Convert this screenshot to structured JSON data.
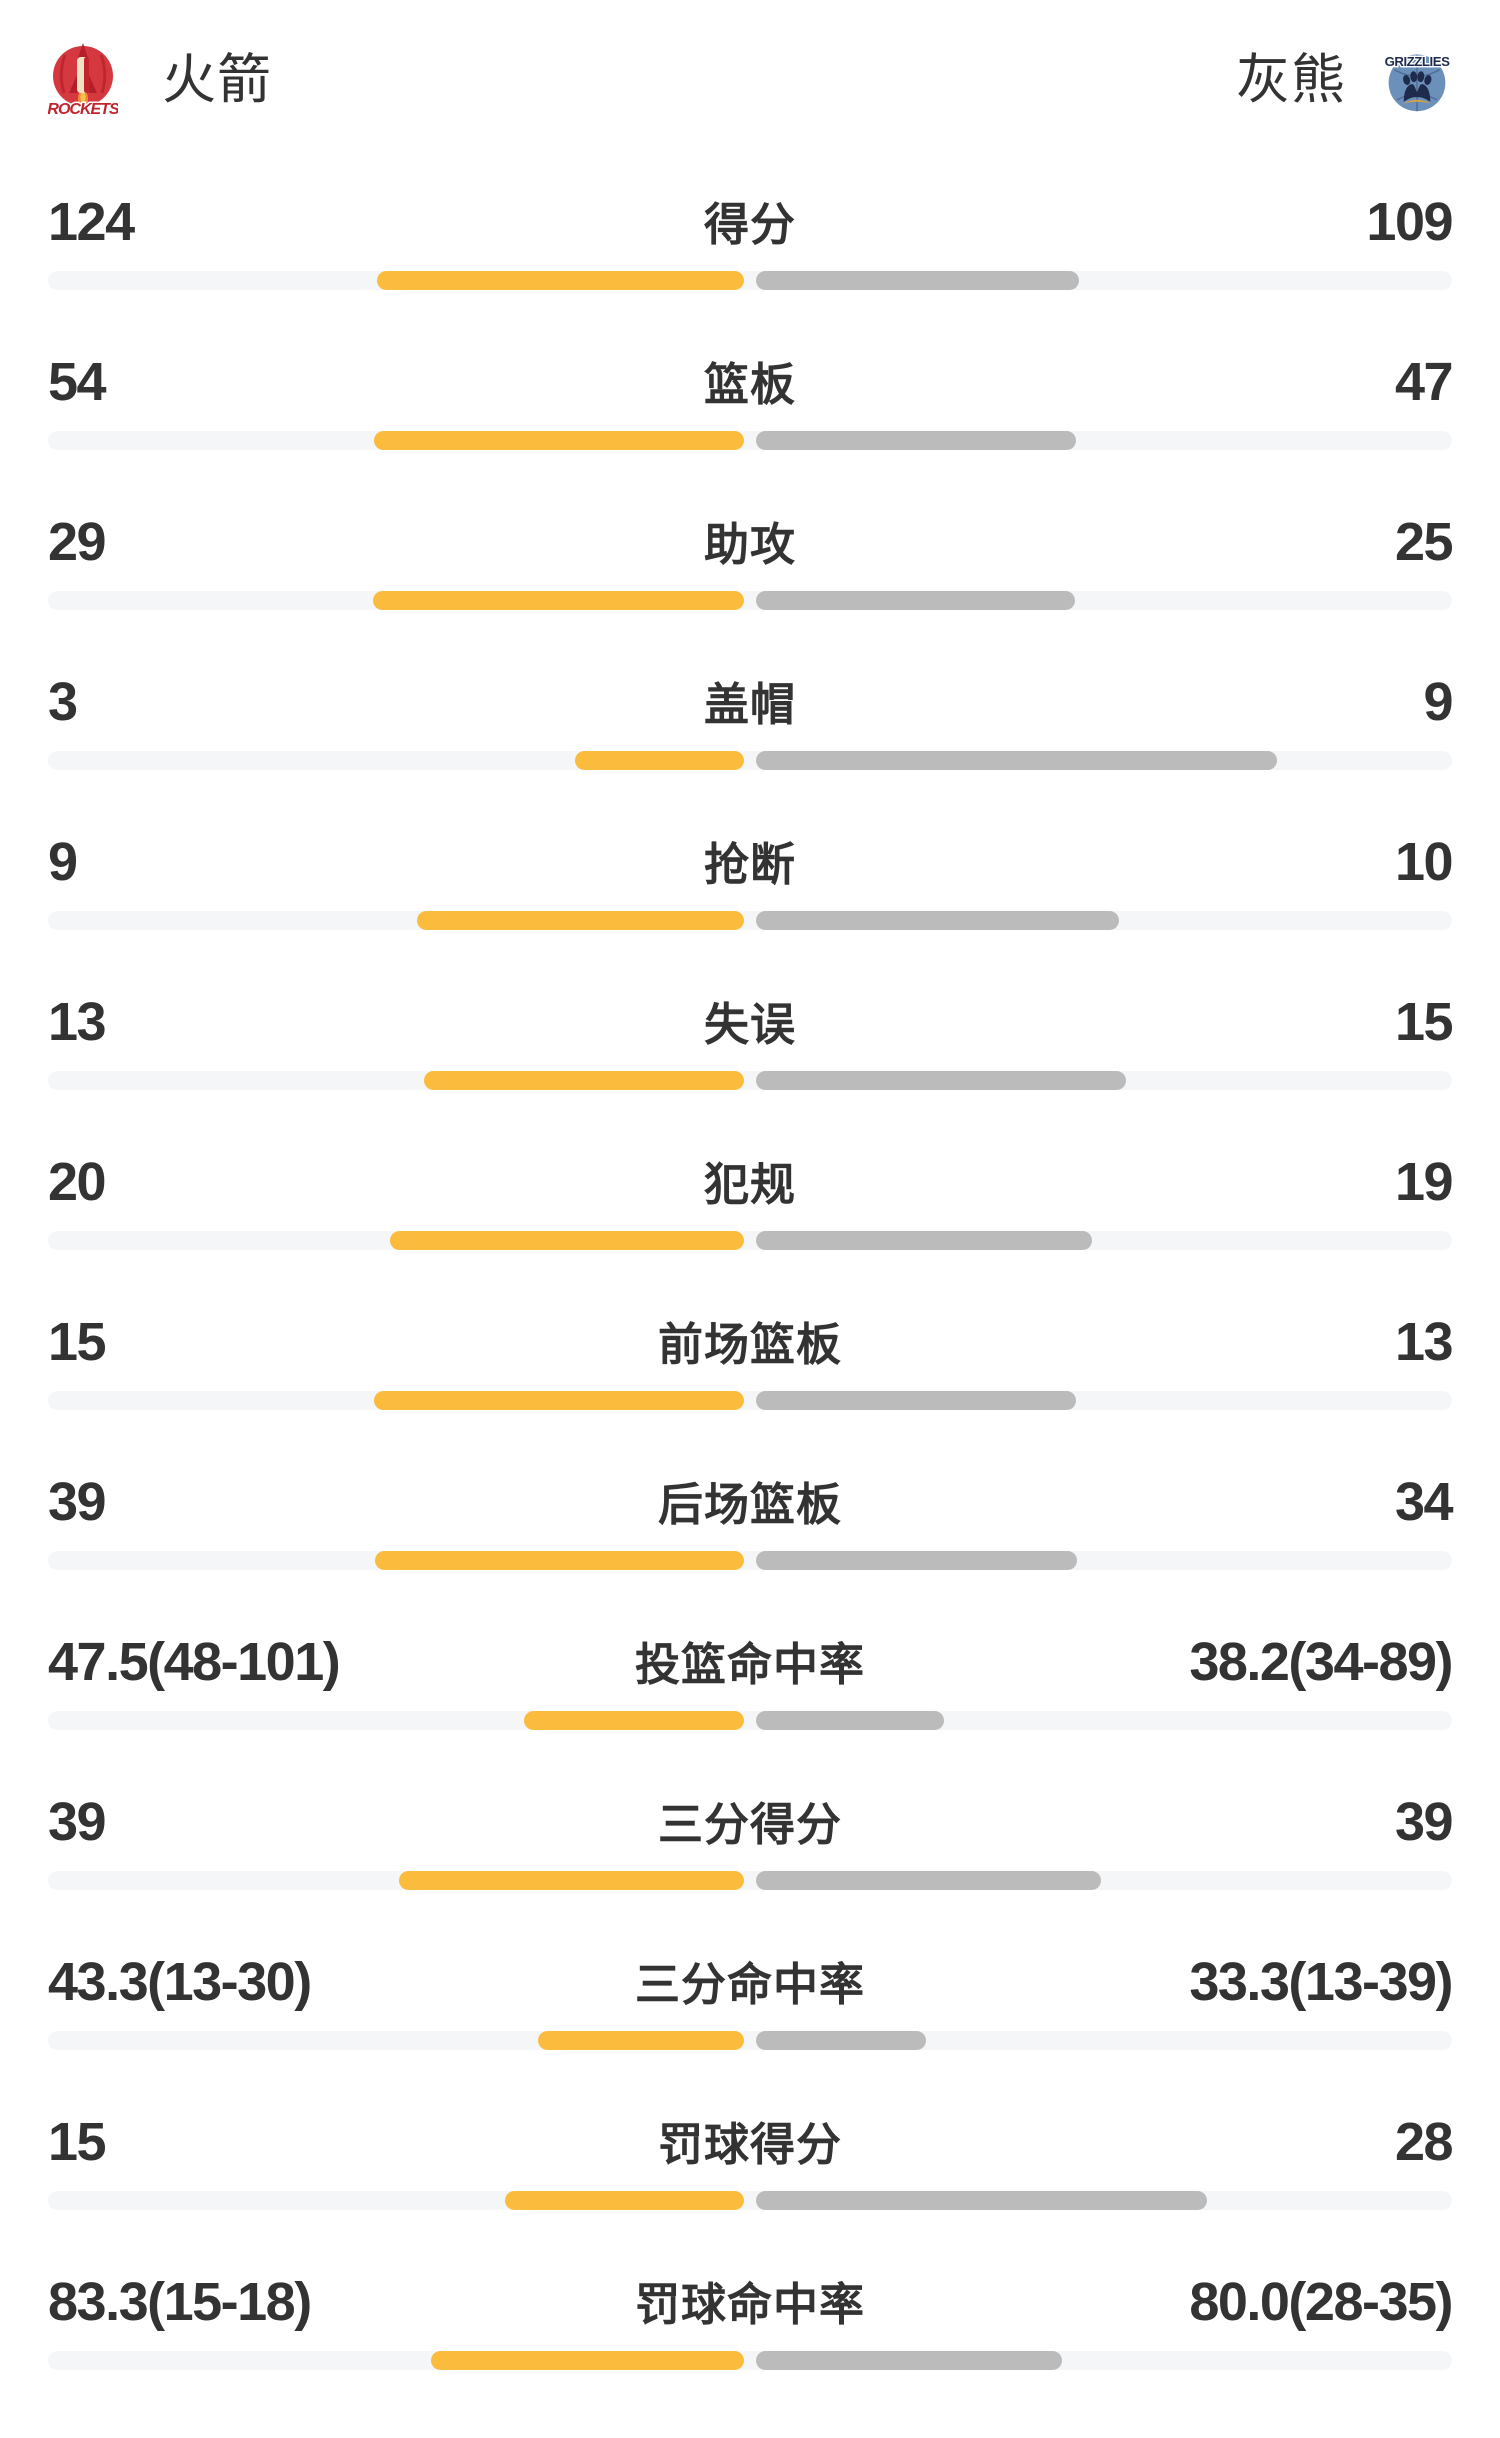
{
  "header": {
    "home": {
      "name": "火箭",
      "logo": "rockets"
    },
    "away": {
      "name": "灰熊",
      "logo": "grizzlies"
    },
    "rockets_logo_text": "ROCKETS",
    "grizzlies_logo_text": "GRIZZLIES"
  },
  "colors": {
    "home_bar": "#fbbc3e",
    "away_bar": "#bbbbbb",
    "track": "#f5f6f8",
    "text": "#333333",
    "rockets_red": "#c8232c",
    "grizzlies_blue": "#6b90ba",
    "grizzlies_navy": "#1e2b4d",
    "grizzlies_gold": "#dfa13f"
  },
  "stats": [
    {
      "label": "得分",
      "home": "124",
      "away": "109",
      "home_bar_pct": 53.2,
      "away_bar_pct": 46.8
    },
    {
      "label": "篮板",
      "home": "54",
      "away": "47",
      "home_bar_pct": 53.5,
      "away_bar_pct": 46.5
    },
    {
      "label": "助攻",
      "home": "29",
      "away": "25",
      "home_bar_pct": 53.7,
      "away_bar_pct": 46.3
    },
    {
      "label": "盖帽",
      "home": "3",
      "away": "9",
      "home_bar_pct": 25.0,
      "away_bar_pct": 75.0
    },
    {
      "label": "抢断",
      "home": "9",
      "away": "10",
      "home_bar_pct": 47.4,
      "away_bar_pct": 52.6
    },
    {
      "label": "失误",
      "home": "13",
      "away": "15",
      "home_bar_pct": 46.4,
      "away_bar_pct": 53.6
    },
    {
      "label": "犯规",
      "home": "20",
      "away": "19",
      "home_bar_pct": 51.3,
      "away_bar_pct": 48.7
    },
    {
      "label": "前场篮板",
      "home": "15",
      "away": "13",
      "home_bar_pct": 53.6,
      "away_bar_pct": 46.4
    },
    {
      "label": "后场篮板",
      "home": "39",
      "away": "34",
      "home_bar_pct": 53.4,
      "away_bar_pct": 46.6
    },
    {
      "label": "投篮命中率",
      "home": "47.5(48-101)",
      "away": "38.2(34-89)",
      "home_bar_pct": 32.2,
      "away_bar_pct": 27.6
    },
    {
      "label": "三分得分",
      "home": "39",
      "away": "39",
      "home_bar_pct": 50.0,
      "away_bar_pct": 50.0
    },
    {
      "label": "三分命中率",
      "home": "43.3(13-30)",
      "away": "33.3(13-39)",
      "home_bar_pct": 30.2,
      "away_bar_pct": 25.0
    },
    {
      "label": "罚球得分",
      "home": "15",
      "away": "28",
      "home_bar_pct": 34.9,
      "away_bar_pct": 65.1
    },
    {
      "label": "罚球命中率",
      "home": "83.3(15-18)",
      "away": "80.0(28-35)",
      "home_bar_pct": 45.5,
      "away_bar_pct": 44.4
    }
  ],
  "chart_data": {
    "type": "bar",
    "orientation": "horizontal-paired",
    "categories": [
      "得分",
      "篮板",
      "助攻",
      "盖帽",
      "抢断",
      "失误",
      "犯规",
      "前场篮板",
      "后场篮板",
      "投篮命中率",
      "三分得分",
      "三分命中率",
      "罚球得分",
      "罚球命中率"
    ],
    "series": [
      {
        "name": "火箭",
        "values": [
          124,
          54,
          29,
          3,
          9,
          13,
          20,
          15,
          39,
          47.5,
          39,
          43.3,
          15,
          83.3
        ]
      },
      {
        "name": "灰熊",
        "values": [
          109,
          47,
          25,
          9,
          10,
          15,
          19,
          13,
          34,
          38.2,
          39,
          33.3,
          28,
          80.0
        ]
      }
    ],
    "value_labels": [
      {
        "home": "124",
        "away": "109"
      },
      {
        "home": "54",
        "away": "47"
      },
      {
        "home": "29",
        "away": "25"
      },
      {
        "home": "3",
        "away": "9"
      },
      {
        "home": "9",
        "away": "10"
      },
      {
        "home": "13",
        "away": "15"
      },
      {
        "home": "20",
        "away": "19"
      },
      {
        "home": "15",
        "away": "13"
      },
      {
        "home": "39",
        "away": "34"
      },
      {
        "home": "47.5(48-101)",
        "away": "38.2(34-89)"
      },
      {
        "home": "39",
        "away": "39"
      },
      {
        "home": "43.3(13-30)",
        "away": "33.3(13-39)"
      },
      {
        "home": "15",
        "away": "28"
      },
      {
        "home": "83.3(15-18)",
        "away": "80.0(28-35)"
      }
    ],
    "legend_position": "top",
    "grid": false
  }
}
